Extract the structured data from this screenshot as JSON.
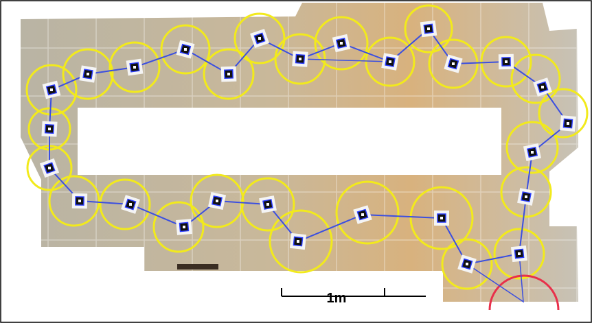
{
  "scale_bar": {
    "label": "1m"
  }
}
